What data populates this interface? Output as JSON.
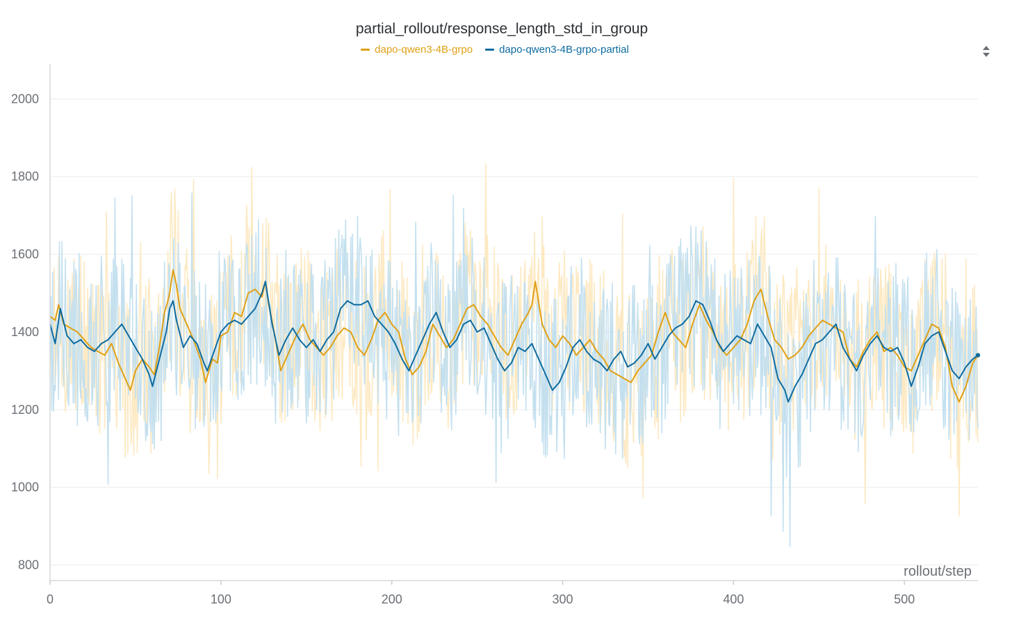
{
  "chart_data": {
    "type": "line",
    "title": "partial_rollout/response_length_std_in_group",
    "xlabel": "rollout/step",
    "ylabel": "",
    "xlim": [
      0,
      543
    ],
    "ylim": [
      760,
      2090
    ],
    "x_ticks": [
      0,
      100,
      200,
      300,
      400,
      500
    ],
    "y_ticks": [
      800,
      1000,
      1200,
      1400,
      1600,
      1800,
      2000
    ],
    "grid": true,
    "legend_position": "top-center",
    "series": [
      {
        "name": "dapo-qwen3-4B-grpo",
        "color": "#e0a015",
        "raw_color": "#fde9c2",
        "smoothed": [
          [
            0,
            1440
          ],
          [
            3,
            1430
          ],
          [
            5,
            1470
          ],
          [
            8,
            1420
          ],
          [
            12,
            1410
          ],
          [
            16,
            1400
          ],
          [
            20,
            1380
          ],
          [
            24,
            1360
          ],
          [
            28,
            1350
          ],
          [
            32,
            1340
          ],
          [
            36,
            1370
          ],
          [
            40,
            1320
          ],
          [
            44,
            1280
          ],
          [
            47,
            1250
          ],
          [
            50,
            1300
          ],
          [
            54,
            1330
          ],
          [
            58,
            1310
          ],
          [
            61,
            1290
          ],
          [
            64,
            1360
          ],
          [
            67,
            1450
          ],
          [
            69,
            1480
          ],
          [
            70,
            1500
          ],
          [
            72,
            1560
          ],
          [
            74,
            1520
          ],
          [
            76,
            1460
          ],
          [
            80,
            1420
          ],
          [
            84,
            1380
          ],
          [
            88,
            1330
          ],
          [
            91,
            1270
          ],
          [
            95,
            1330
          ],
          [
            98,
            1320
          ],
          [
            100,
            1390
          ],
          [
            104,
            1400
          ],
          [
            108,
            1450
          ],
          [
            112,
            1440
          ],
          [
            116,
            1500
          ],
          [
            120,
            1510
          ],
          [
            124,
            1490
          ],
          [
            126,
            1530
          ],
          [
            128,
            1470
          ],
          [
            132,
            1380
          ],
          [
            135,
            1300
          ],
          [
            140,
            1350
          ],
          [
            144,
            1390
          ],
          [
            148,
            1420
          ],
          [
            152,
            1380
          ],
          [
            156,
            1360
          ],
          [
            160,
            1340
          ],
          [
            164,
            1360
          ],
          [
            168,
            1390
          ],
          [
            172,
            1410
          ],
          [
            176,
            1400
          ],
          [
            180,
            1360
          ],
          [
            184,
            1340
          ],
          [
            188,
            1380
          ],
          [
            192,
            1430
          ],
          [
            196,
            1450
          ],
          [
            200,
            1420
          ],
          [
            204,
            1400
          ],
          [
            208,
            1330
          ],
          [
            212,
            1290
          ],
          [
            216,
            1310
          ],
          [
            220,
            1350
          ],
          [
            224,
            1420
          ],
          [
            228,
            1390
          ],
          [
            232,
            1360
          ],
          [
            236,
            1380
          ],
          [
            240,
            1420
          ],
          [
            244,
            1460
          ],
          [
            248,
            1470
          ],
          [
            252,
            1440
          ],
          [
            256,
            1420
          ],
          [
            260,
            1390
          ],
          [
            264,
            1360
          ],
          [
            268,
            1340
          ],
          [
            272,
            1380
          ],
          [
            276,
            1420
          ],
          [
            280,
            1450
          ],
          [
            282,
            1470
          ],
          [
            284,
            1530
          ],
          [
            288,
            1420
          ],
          [
            292,
            1380
          ],
          [
            296,
            1360
          ],
          [
            300,
            1390
          ],
          [
            304,
            1370
          ],
          [
            308,
            1340
          ],
          [
            312,
            1360
          ],
          [
            316,
            1380
          ],
          [
            320,
            1350
          ],
          [
            324,
            1330
          ],
          [
            328,
            1300
          ],
          [
            332,
            1290
          ],
          [
            336,
            1280
          ],
          [
            340,
            1270
          ],
          [
            344,
            1300
          ],
          [
            348,
            1320
          ],
          [
            352,
            1340
          ],
          [
            356,
            1400
          ],
          [
            360,
            1450
          ],
          [
            364,
            1400
          ],
          [
            368,
            1380
          ],
          [
            372,
            1360
          ],
          [
            376,
            1420
          ],
          [
            380,
            1470
          ],
          [
            384,
            1430
          ],
          [
            388,
            1400
          ],
          [
            392,
            1360
          ],
          [
            396,
            1340
          ],
          [
            400,
            1360
          ],
          [
            404,
            1380
          ],
          [
            408,
            1420
          ],
          [
            412,
            1480
          ],
          [
            416,
            1510
          ],
          [
            420,
            1440
          ],
          [
            424,
            1380
          ],
          [
            428,
            1360
          ],
          [
            432,
            1330
          ],
          [
            436,
            1340
          ],
          [
            440,
            1360
          ],
          [
            444,
            1390
          ],
          [
            448,
            1410
          ],
          [
            452,
            1430
          ],
          [
            456,
            1420
          ],
          [
            460,
            1410
          ],
          [
            464,
            1400
          ],
          [
            468,
            1330
          ],
          [
            472,
            1310
          ],
          [
            476,
            1350
          ],
          [
            480,
            1380
          ],
          [
            484,
            1400
          ],
          [
            488,
            1350
          ],
          [
            492,
            1360
          ],
          [
            496,
            1340
          ],
          [
            500,
            1310
          ],
          [
            504,
            1300
          ],
          [
            508,
            1340
          ],
          [
            512,
            1380
          ],
          [
            516,
            1420
          ],
          [
            520,
            1410
          ],
          [
            524,
            1360
          ],
          [
            528,
            1260
          ],
          [
            532,
            1220
          ],
          [
            536,
            1260
          ],
          [
            540,
            1320
          ],
          [
            543,
            1340
          ]
        ]
      },
      {
        "name": "dapo-qwen3-4B-grpo-partial",
        "color": "#0e6b9f",
        "raw_color": "#c4e0ef",
        "smoothed": [
          [
            0,
            1420
          ],
          [
            3,
            1370
          ],
          [
            6,
            1460
          ],
          [
            10,
            1390
          ],
          [
            14,
            1370
          ],
          [
            18,
            1380
          ],
          [
            22,
            1360
          ],
          [
            26,
            1350
          ],
          [
            30,
            1370
          ],
          [
            34,
            1380
          ],
          [
            38,
            1400
          ],
          [
            42,
            1420
          ],
          [
            46,
            1390
          ],
          [
            50,
            1360
          ],
          [
            54,
            1330
          ],
          [
            58,
            1290
          ],
          [
            60,
            1260
          ],
          [
            64,
            1330
          ],
          [
            68,
            1400
          ],
          [
            70,
            1460
          ],
          [
            72,
            1480
          ],
          [
            74,
            1430
          ],
          [
            78,
            1360
          ],
          [
            82,
            1390
          ],
          [
            86,
            1370
          ],
          [
            90,
            1320
          ],
          [
            92,
            1300
          ],
          [
            96,
            1350
          ],
          [
            100,
            1400
          ],
          [
            104,
            1420
          ],
          [
            108,
            1430
          ],
          [
            112,
            1420
          ],
          [
            116,
            1440
          ],
          [
            120,
            1460
          ],
          [
            124,
            1500
          ],
          [
            126,
            1530
          ],
          [
            130,
            1420
          ],
          [
            134,
            1340
          ],
          [
            138,
            1380
          ],
          [
            142,
            1410
          ],
          [
            146,
            1380
          ],
          [
            150,
            1360
          ],
          [
            154,
            1380
          ],
          [
            158,
            1350
          ],
          [
            162,
            1380
          ],
          [
            166,
            1400
          ],
          [
            170,
            1460
          ],
          [
            174,
            1480
          ],
          [
            178,
            1470
          ],
          [
            182,
            1470
          ],
          [
            186,
            1480
          ],
          [
            190,
            1440
          ],
          [
            194,
            1420
          ],
          [
            198,
            1400
          ],
          [
            202,
            1370
          ],
          [
            206,
            1330
          ],
          [
            210,
            1300
          ],
          [
            214,
            1340
          ],
          [
            218,
            1380
          ],
          [
            222,
            1420
          ],
          [
            226,
            1450
          ],
          [
            230,
            1400
          ],
          [
            234,
            1360
          ],
          [
            238,
            1380
          ],
          [
            242,
            1420
          ],
          [
            246,
            1430
          ],
          [
            250,
            1400
          ],
          [
            254,
            1410
          ],
          [
            258,
            1370
          ],
          [
            262,
            1330
          ],
          [
            266,
            1300
          ],
          [
            270,
            1320
          ],
          [
            274,
            1360
          ],
          [
            278,
            1350
          ],
          [
            282,
            1370
          ],
          [
            286,
            1330
          ],
          [
            290,
            1290
          ],
          [
            294,
            1250
          ],
          [
            298,
            1270
          ],
          [
            302,
            1310
          ],
          [
            306,
            1360
          ],
          [
            310,
            1380
          ],
          [
            314,
            1350
          ],
          [
            318,
            1330
          ],
          [
            322,
            1320
          ],
          [
            326,
            1300
          ],
          [
            330,
            1330
          ],
          [
            334,
            1350
          ],
          [
            338,
            1310
          ],
          [
            342,
            1320
          ],
          [
            346,
            1340
          ],
          [
            350,
            1370
          ],
          [
            354,
            1330
          ],
          [
            358,
            1360
          ],
          [
            362,
            1390
          ],
          [
            366,
            1410
          ],
          [
            370,
            1420
          ],
          [
            374,
            1440
          ],
          [
            378,
            1480
          ],
          [
            382,
            1470
          ],
          [
            386,
            1430
          ],
          [
            390,
            1380
          ],
          [
            394,
            1350
          ],
          [
            398,
            1370
          ],
          [
            402,
            1390
          ],
          [
            406,
            1380
          ],
          [
            410,
            1370
          ],
          [
            414,
            1420
          ],
          [
            418,
            1390
          ],
          [
            422,
            1360
          ],
          [
            426,
            1280
          ],
          [
            430,
            1250
          ],
          [
            432,
            1220
          ],
          [
            436,
            1260
          ],
          [
            440,
            1290
          ],
          [
            444,
            1330
          ],
          [
            448,
            1370
          ],
          [
            452,
            1380
          ],
          [
            456,
            1400
          ],
          [
            460,
            1420
          ],
          [
            464,
            1360
          ],
          [
            468,
            1330
          ],
          [
            472,
            1300
          ],
          [
            476,
            1340
          ],
          [
            480,
            1370
          ],
          [
            484,
            1390
          ],
          [
            488,
            1360
          ],
          [
            492,
            1350
          ],
          [
            496,
            1360
          ],
          [
            500,
            1320
          ],
          [
            504,
            1260
          ],
          [
            508,
            1310
          ],
          [
            512,
            1370
          ],
          [
            516,
            1390
          ],
          [
            520,
            1400
          ],
          [
            524,
            1350
          ],
          [
            528,
            1300
          ],
          [
            532,
            1280
          ],
          [
            536,
            1310
          ],
          [
            540,
            1330
          ],
          [
            543,
            1340
          ]
        ]
      }
    ]
  },
  "icons": {
    "sort_control": "sort-arrows-icon"
  }
}
